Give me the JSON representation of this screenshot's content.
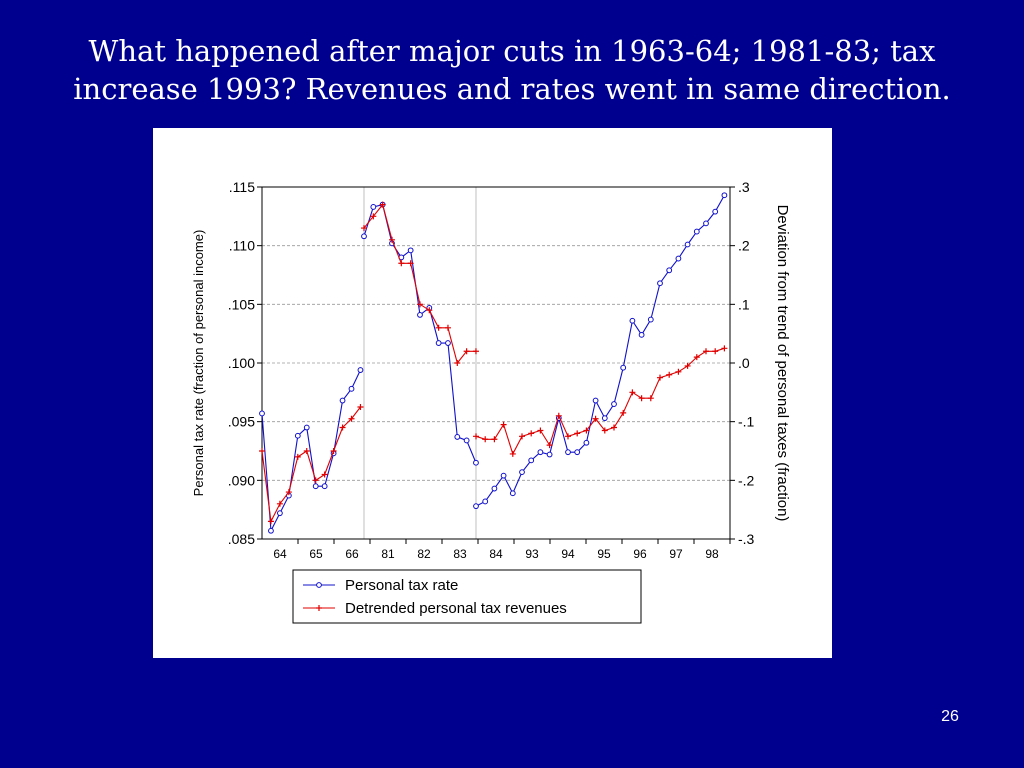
{
  "slide": {
    "title_line1": "What happened after major cuts in 1963-64; 1981-83; tax",
    "title_line2": "increase 1993? Revenues and rates went in same direction.",
    "page_number": "26",
    "background_color": "#00008f"
  },
  "chart_data": {
    "type": "line",
    "ylabel_left": "Personal tax rate (fraction of  personal income)",
    "ylabel_right": "Deviation from trend of personal taxes  (fraction)",
    "ylim_left": [
      0.085,
      0.115
    ],
    "ylim_right": [
      -0.3,
      0.3
    ],
    "yticks_left": [
      ".115",
      ".110",
      ".105",
      ".100",
      ".095",
      ".090",
      ".085"
    ],
    "yticks_right": [
      ".3",
      ".2",
      ".1",
      ".0",
      "-.1",
      "-.2",
      "-.3"
    ],
    "xticks": [
      "64",
      "65",
      "66",
      "81",
      "82",
      "83",
      "84",
      "93",
      "94",
      "95",
      "96",
      "97",
      "98"
    ],
    "grid": true,
    "legend_position": "bottom",
    "series": [
      {
        "name": "Personal tax rate",
        "axis": "left",
        "color": "#1010cc",
        "marker": "circle",
        "segments": [
          [
            0.0957,
            0.0857,
            0.0872,
            0.0887,
            0.0938,
            0.0945,
            0.0895,
            0.0895,
            0.0923,
            0.0968,
            0.0978,
            0.0994
          ],
          [
            0.1108,
            0.1133,
            0.1135,
            0.1102,
            0.109,
            0.1096,
            0.1041,
            0.1047,
            0.1017,
            0.1017,
            0.0937,
            0.0934,
            0.0915
          ],
          [
            0.0878,
            0.0882,
            0.0893,
            0.0904,
            0.0889,
            0.0907,
            0.0917,
            0.0924,
            0.0922,
            0.0953,
            0.0924,
            0.0924,
            0.0932,
            0.0968,
            0.0953,
            0.0965,
            0.0996,
            0.1036,
            0.1024,
            0.1037,
            0.1068,
            0.1079,
            0.1089,
            0.1101,
            0.1112,
            0.1119,
            0.1129,
            0.1143
          ]
        ]
      },
      {
        "name": "Detrended personal tax revenues",
        "axis": "right",
        "color": "#e00000",
        "marker": "plus",
        "segments": [
          [
            -0.15,
            -0.27,
            -0.24,
            -0.22,
            -0.16,
            -0.15,
            -0.2,
            -0.19,
            -0.15,
            -0.11,
            -0.095,
            -0.075
          ],
          [
            0.23,
            0.25,
            0.27,
            0.21,
            0.17,
            0.17,
            0.1,
            0.09,
            0.06,
            0.06,
            0.0,
            0.02,
            0.02
          ],
          [
            -0.125,
            -0.13,
            -0.13,
            -0.105,
            -0.155,
            -0.125,
            -0.12,
            -0.115,
            -0.14,
            -0.09,
            -0.125,
            -0.12,
            -0.115,
            -0.095,
            -0.115,
            -0.11,
            -0.085,
            -0.05,
            -0.06,
            -0.06,
            -0.025,
            -0.02,
            -0.015,
            -0.005,
            0.01,
            0.02,
            0.02,
            0.025
          ]
        ]
      }
    ]
  }
}
